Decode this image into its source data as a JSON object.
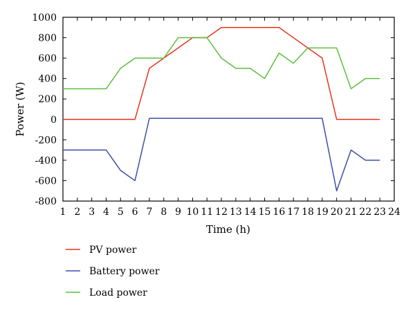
{
  "chart_data": {
    "type": "line",
    "title": "",
    "xlabel": "Time (h)",
    "ylabel": "Power (W)",
    "xlim": [
      1,
      24
    ],
    "ylim": [
      -800,
      1000
    ],
    "x_ticks": [
      1,
      2,
      3,
      4,
      5,
      6,
      7,
      8,
      9,
      10,
      11,
      12,
      13,
      14,
      15,
      16,
      17,
      18,
      19,
      20,
      21,
      22,
      23,
      24
    ],
    "y_ticks": [
      -800,
      -600,
      -400,
      -200,
      0,
      200,
      400,
      600,
      800,
      1000
    ],
    "grid": false,
    "legend_position": "bottom-left",
    "series": [
      {
        "name": "PV power",
        "color": "#e8321c",
        "x": [
          1,
          2,
          3,
          4,
          5,
          6,
          7,
          8,
          9,
          10,
          11,
          12,
          13,
          14,
          15,
          16,
          17,
          18,
          19,
          20,
          21,
          22,
          23
        ],
        "values": [
          0,
          0,
          0,
          0,
          0,
          0,
          500,
          600,
          700,
          800,
          800,
          900,
          900,
          900,
          900,
          900,
          800,
          700,
          600,
          0,
          0,
          0,
          0
        ]
      },
      {
        "name": "Battery power",
        "color": "#3a4fa6",
        "x": [
          1,
          2,
          3,
          4,
          5,
          6,
          7,
          8,
          9,
          10,
          11,
          12,
          13,
          14,
          15,
          16,
          17,
          18,
          19,
          20,
          21,
          22,
          23
        ],
        "values": [
          -300,
          -300,
          -300,
          -300,
          -500,
          -600,
          10,
          10,
          10,
          10,
          10,
          10,
          10,
          10,
          10,
          10,
          10,
          10,
          10,
          -700,
          -300,
          -400,
          -400
        ]
      },
      {
        "name": "Load power",
        "color": "#5cbf3a",
        "x": [
          1,
          2,
          3,
          4,
          5,
          6,
          7,
          8,
          9,
          10,
          11,
          12,
          13,
          14,
          15,
          16,
          17,
          18,
          19,
          20,
          21,
          22,
          23
        ],
        "values": [
          300,
          300,
          300,
          300,
          500,
          600,
          600,
          600,
          800,
          800,
          800,
          600,
          500,
          500,
          400,
          650,
          550,
          700,
          700,
          700,
          300,
          400,
          400
        ]
      }
    ]
  }
}
